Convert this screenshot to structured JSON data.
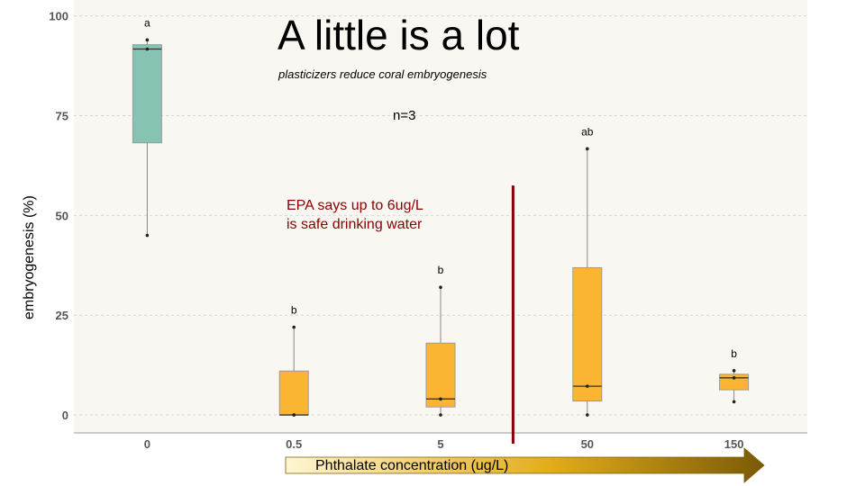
{
  "title": "A little is a lot",
  "subtitle": "plasticizers reduce coral  embryogenesis",
  "n_label": "n=3",
  "annotation": {
    "line1": "EPA says up to 6ug/L",
    "line2": "is safe drinking water",
    "color": "#8b0000"
  },
  "colors": {
    "panel": "#f8f7f2",
    "grid": "#d6d6d2",
    "teal": "#87c3b3",
    "orange": "#fbb532",
    "epa_line": "#8b0000"
  },
  "chart_data": {
    "type": "box",
    "xlabel": "Phthalate concentration (ug/L)",
    "ylabel": "embryogenesis (%)",
    "categories": [
      "0",
      "0.5",
      "5",
      "50",
      "150"
    ],
    "yticks": [
      0,
      25,
      50,
      75,
      100
    ],
    "ylim": [
      -4.5,
      104
    ],
    "grid": true,
    "boxes": [
      {
        "category": "0",
        "min": 45,
        "q1": 68.2,
        "median": 91.7,
        "q3": 92.8,
        "max": 94,
        "points": [
          45,
          91.7,
          94
        ],
        "letter": "a",
        "color": "#87c3b3"
      },
      {
        "category": "0.5",
        "min": 0,
        "q1": 0,
        "median": 0,
        "q3": 11,
        "max": 22,
        "points": [
          0,
          0,
          22
        ],
        "letter": "b",
        "color": "#fbb532"
      },
      {
        "category": "5",
        "min": 0,
        "q1": 2,
        "median": 4,
        "q3": 18,
        "max": 32,
        "points": [
          0,
          4,
          32
        ],
        "letter": "b",
        "color": "#fbb532"
      },
      {
        "category": "50",
        "min": 0,
        "q1": 3.5,
        "median": 7.2,
        "q3": 36.9,
        "max": 66.7,
        "points": [
          0,
          7.2,
          66.7
        ],
        "letter": "ab",
        "color": "#fbb532"
      },
      {
        "category": "150",
        "min": 3.3,
        "q1": 6.3,
        "median": 9.3,
        "q3": 10.2,
        "max": 11.1,
        "points": [
          3.3,
          9.3,
          11.1
        ],
        "letter": "b",
        "color": "#fbb532"
      }
    ],
    "reference_line": {
      "label": "EPA says up to 6ug/L is safe drinking water",
      "between": [
        "5",
        "50"
      ],
      "ymax": 57.5
    }
  }
}
